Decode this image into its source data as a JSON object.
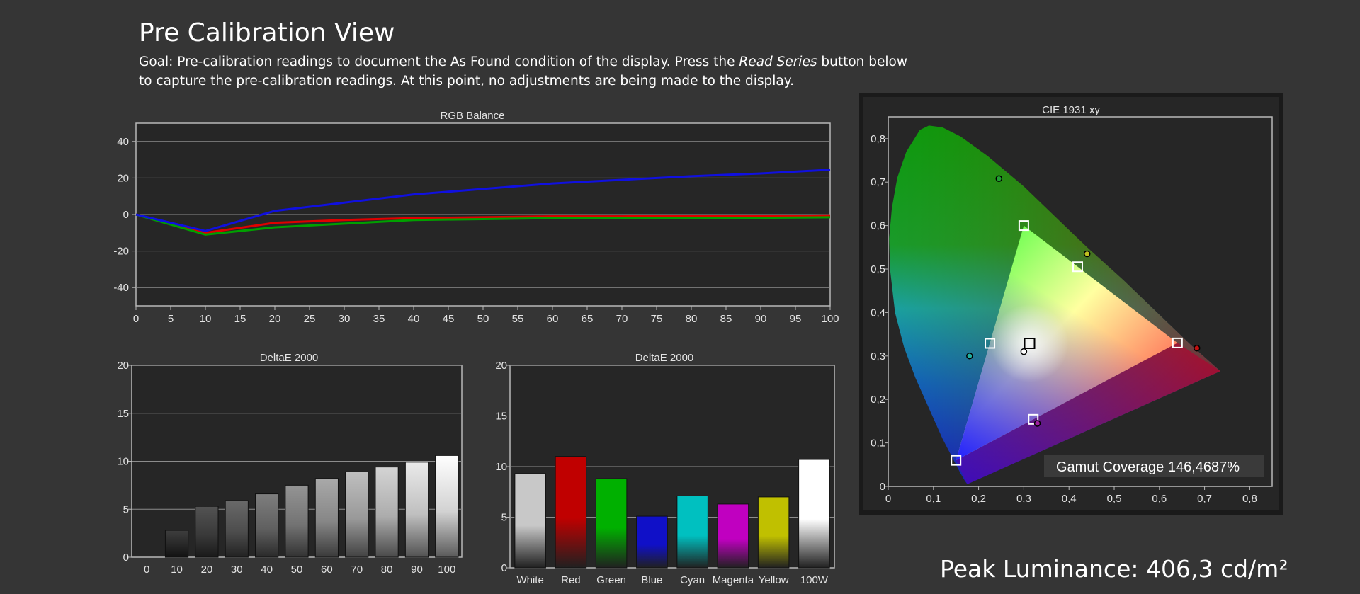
{
  "page": {
    "title": "Pre Calibration View",
    "goal_prefix": "Goal: Pre-calibration readings to document the As Found condition of the display. Press the ",
    "goal_emphasis": "Read Series",
    "goal_suffix": " button below to capture the pre-calibration readings. At this point, no adjustments are being made to the display.",
    "peak_label": "Peak Luminance:",
    "peak_value": "406,3 cd/m²"
  },
  "colors": {
    "background": "#353535",
    "plot_background": "#262626",
    "red": "#e00000",
    "green": "#00a000",
    "blue": "#1010e0"
  },
  "chart_data": [
    {
      "type": "line",
      "title": "RGB Balance",
      "x": [
        0,
        10,
        20,
        30,
        40,
        50,
        60,
        70,
        80,
        90,
        100
      ],
      "xticks": [
        0,
        5,
        10,
        15,
        20,
        25,
        30,
        35,
        40,
        45,
        50,
        55,
        60,
        65,
        70,
        75,
        80,
        85,
        90,
        95,
        100
      ],
      "yticks": [
        40,
        20,
        0,
        -20,
        -40
      ],
      "xlim": [
        0,
        100
      ],
      "ylim": [
        -50,
        50
      ],
      "grid": true,
      "series": [
        {
          "color": "#e00000",
          "values": [
            0,
            -10,
            -4.5,
            -3,
            -2,
            -1.5,
            -1,
            -1,
            -0.8,
            -0.8,
            -0.5
          ]
        },
        {
          "color": "#00a000",
          "values": [
            0,
            -11,
            -7,
            -5,
            -3,
            -2.5,
            -2,
            -2,
            -1.8,
            -1.8,
            -1.5
          ]
        },
        {
          "color": "#1010e0",
          "values": [
            0,
            -9,
            2,
            6.5,
            11,
            14,
            17,
            19,
            21,
            22.5,
            24.5
          ]
        }
      ]
    },
    {
      "type": "bar",
      "title": "DeltaE 2000",
      "categories": [
        "0",
        "10",
        "20",
        "30",
        "40",
        "50",
        "60",
        "70",
        "80",
        "90",
        "100"
      ],
      "values": [
        0,
        2.8,
        5.3,
        5.9,
        6.6,
        7.5,
        8.2,
        8.9,
        9.4,
        9.9,
        10.6
      ],
      "yticks": [
        20,
        15,
        10,
        5,
        0
      ],
      "ylim": [
        0,
        20
      ],
      "grid": true
    },
    {
      "type": "bar",
      "title": "DeltaE 2000",
      "categories": [
        "White",
        "Red",
        "Green",
        "Blue",
        "Cyan",
        "Magenta",
        "Yellow",
        "100W"
      ],
      "colors": [
        "#c8c8c8",
        "#c00000",
        "#00b000",
        "#1010c8",
        "#00c0c0",
        "#c000c0",
        "#c0c000",
        "#ffffff"
      ],
      "values": [
        9.3,
        11.0,
        8.8,
        5.1,
        7.1,
        6.3,
        7.0,
        10.7
      ],
      "yticks": [
        20,
        15,
        10,
        5,
        0
      ],
      "ylim": [
        0,
        20
      ],
      "grid": true
    },
    {
      "type": "scatter",
      "title": "CIE 1931 xy",
      "xticks": [
        "0",
        "0,1",
        "0,2",
        "0,3",
        "0,4",
        "0,5",
        "0,6",
        "0,7",
        "0,8"
      ],
      "yticks": [
        "0,8",
        "0,7",
        "0,6",
        "0,5",
        "0,4",
        "0,3",
        "0,2",
        "0,1",
        "0"
      ],
      "xlim": [
        0,
        0.85
      ],
      "ylim": [
        0,
        0.84
      ],
      "target_gamut": [
        [
          0.64,
          0.33
        ],
        [
          0.3,
          0.6
        ],
        [
          0.15,
          0.06
        ]
      ],
      "targets": [
        [
          0.64,
          0.33
        ],
        [
          0.3,
          0.6
        ],
        [
          0.15,
          0.06
        ],
        [
          0.225,
          0.329
        ],
        [
          0.3209,
          0.1542
        ],
        [
          0.4193,
          0.5053
        ],
        [
          0.3127,
          0.329
        ]
      ],
      "measured": [
        [
          0.683,
          0.318
        ],
        [
          0.245,
          0.708
        ],
        [
          0.18,
          0.3
        ],
        [
          0.33,
          0.145
        ],
        [
          0.44,
          0.535
        ],
        [
          0.3,
          0.31
        ]
      ],
      "gamut_coverage_label": "Gamut Coverage",
      "gamut_coverage_value": "146,4687%"
    }
  ]
}
